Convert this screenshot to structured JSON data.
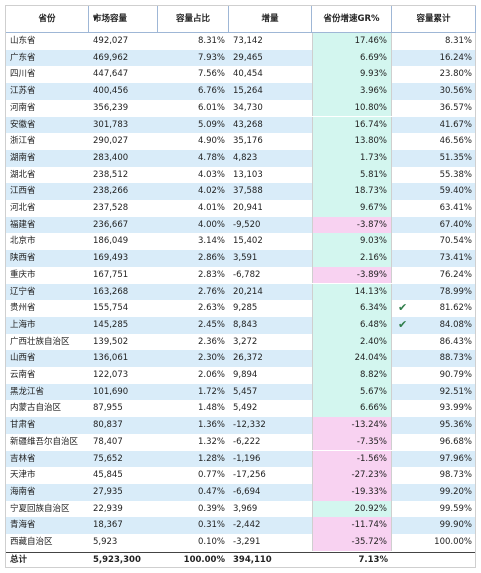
{
  "table": {
    "header": [
      "省份",
      "市场容量",
      "容量占比",
      "增量",
      "省份增速GR%",
      "容量累计"
    ],
    "rows": [
      [
        "山东省",
        "492,027",
        "8.31%",
        "73,142",
        "17.46%",
        "8.31%"
      ],
      [
        "广东省",
        "469,962",
        "7.93%",
        "29,465",
        "6.69%",
        "16.24%"
      ],
      [
        "四川省",
        "447,647",
        "7.56%",
        "40,454",
        "9.93%",
        "23.80%"
      ],
      [
        "江苏省",
        "400,456",
        "6.76%",
        "15,264",
        "3.96%",
        "30.56%"
      ],
      [
        "河南省",
        "356,239",
        "6.01%",
        "34,730",
        "10.80%",
        "36.57%"
      ],
      [
        "安徽省",
        "301,783",
        "5.09%",
        "43,268",
        "16.74%",
        "41.67%"
      ],
      [
        "浙江省",
        "290,027",
        "4.90%",
        "35,176",
        "13.80%",
        "46.56%"
      ],
      [
        "湖南省",
        "283,400",
        "4.78%",
        "4,823",
        "1.73%",
        "51.35%"
      ],
      [
        "湖北省",
        "238,512",
        "4.03%",
        "13,103",
        "5.81%",
        "55.38%"
      ],
      [
        "江西省",
        "238,266",
        "4.02%",
        "37,588",
        "18.73%",
        "59.40%"
      ],
      [
        "河北省",
        "237,528",
        "4.01%",
        "20,941",
        "9.67%",
        "63.41%"
      ],
      [
        "福建省",
        "236,667",
        "4.00%",
        "-9,520",
        "-3.87%",
        "67.40%"
      ],
      [
        "北京市",
        "186,049",
        "3.14%",
        "15,402",
        "9.03%",
        "70.54%"
      ],
      [
        "陕西省",
        "169,493",
        "2.86%",
        "3,591",
        "2.16%",
        "73.41%"
      ],
      [
        "重庆市",
        "167,751",
        "2.83%",
        "-6,782",
        "-3.89%",
        "76.24%"
      ],
      [
        "辽宁省",
        "163,268",
        "2.76%",
        "20,214",
        "14.13%",
        "78.99%"
      ],
      [
        "贵州省",
        "155,754",
        "2.63%",
        "9,285",
        "6.34%",
        "81.62%"
      ],
      [
        "上海市",
        "145,285",
        "2.45%",
        "8,843",
        "6.48%",
        "84.08%"
      ],
      [
        "广西壮族自治区",
        "139,502",
        "2.36%",
        "3,272",
        "2.40%",
        "86.43%"
      ],
      [
        "山西省",
        "136,061",
        "2.30%",
        "26,372",
        "24.04%",
        "88.73%"
      ],
      [
        "云南省",
        "122,073",
        "2.06%",
        "9,894",
        "8.82%",
        "90.79%"
      ],
      [
        "黑龙江省",
        "101,690",
        "1.72%",
        "5,457",
        "5.67%",
        "92.51%"
      ],
      [
        "内蒙古自治区",
        "87,955",
        "1.48%",
        "5,492",
        "6.66%",
        "93.99%"
      ],
      [
        "甘肃省",
        "80,837",
        "1.36%",
        "-12,332",
        "-13.24%",
        "95.36%"
      ],
      [
        "新疆维吾尔自治区",
        "78,407",
        "1.32%",
        "-6,222",
        "-7.35%",
        "96.68%"
      ],
      [
        "吉林省",
        "75,652",
        "1.28%",
        "-1,196",
        "-1.56%",
        "97.96%"
      ],
      [
        "天津市",
        "45,845",
        "0.77%",
        "-17,256",
        "-27.23%",
        "98.73%"
      ],
      [
        "海南省",
        "27,935",
        "0.47%",
        "-6,694",
        "-19.33%",
        "99.20%"
      ],
      [
        "宁夏回族自治区",
        "22,939",
        "0.39%",
        "3,969",
        "20.92%",
        "99.59%"
      ],
      [
        "青海省",
        "18,367",
        "0.31%",
        "-2,442",
        "-11.74%",
        "99.90%"
      ],
      [
        "西藏自治区",
        "5,923",
        "0.10%",
        "-3,291",
        "-35.72%",
        "100.00%"
      ]
    ],
    "total": [
      "总计",
      "5,923,300",
      "100.00%",
      "394,110",
      "7.13%"
    ]
  }
}
